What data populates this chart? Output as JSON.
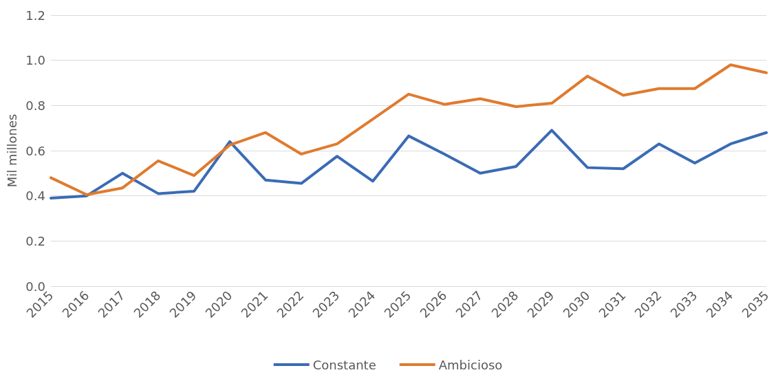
{
  "chart_data": {
    "type": "line",
    "ylabel": "Mil millones",
    "categories": [
      "2015",
      "2016",
      "2017",
      "2018",
      "2019",
      "2020",
      "2021",
      "2022",
      "2023",
      "2024",
      "2025",
      "2026",
      "2027",
      "2028",
      "2029",
      "2030",
      "2031",
      "2032",
      "2033",
      "2034",
      "2035"
    ],
    "series": [
      {
        "name": "Constante",
        "color": "#3a6bb5",
        "values": [
          0.39,
          0.4,
          0.5,
          0.41,
          0.42,
          0.64,
          0.47,
          0.455,
          0.575,
          0.465,
          0.665,
          0.585,
          0.5,
          0.53,
          0.69,
          0.525,
          0.52,
          0.63,
          0.545,
          0.63,
          0.68
        ]
      },
      {
        "name": "Ambicioso",
        "color": "#e07a2e",
        "values": [
          0.48,
          0.405,
          0.435,
          0.555,
          0.49,
          0.625,
          0.68,
          0.585,
          0.63,
          0.74,
          0.85,
          0.805,
          0.83,
          0.795,
          0.81,
          0.93,
          0.845,
          0.875,
          0.875,
          0.98,
          0.945
        ]
      }
    ],
    "ylim": [
      0,
      1.2
    ],
    "yticks": [
      {
        "value": 0,
        "label": "0.0"
      },
      {
        "value": 0.2,
        "label": "0.2"
      },
      {
        "value": 0.4,
        "label": "0.4"
      },
      {
        "value": 0.6,
        "label": "0.6"
      },
      {
        "value": 0.8,
        "label": "0.8"
      },
      {
        "value": 1,
        "label": "1.0"
      },
      {
        "value": 1.2,
        "label": "1.2"
      }
    ],
    "grid": "y",
    "legend": "bottom",
    "marker": "none",
    "line_style": "solid"
  }
}
